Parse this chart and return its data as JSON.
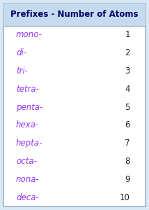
{
  "title": "Prefixes - Number of Atoms",
  "prefixes": [
    "mono-",
    "di-",
    "tri-",
    "tetra-",
    "penta-",
    "hexa-",
    "hepta-",
    "octa-",
    "nona-",
    "deca-"
  ],
  "numbers": [
    1,
    2,
    3,
    4,
    5,
    6,
    7,
    8,
    9,
    10
  ],
  "prefix_color": "#9933FF",
  "number_color": "#222222",
  "title_color": "#000066",
  "header_bg": "#C5DCF0",
  "body_bg": "#FFFFFF",
  "border_color": "#A0B0C8",
  "outer_bg": "#D8E8F4",
  "title_fontsize": 8.5,
  "row_fontsize": 8.5,
  "fig_width": 2.14,
  "fig_height": 3.0
}
